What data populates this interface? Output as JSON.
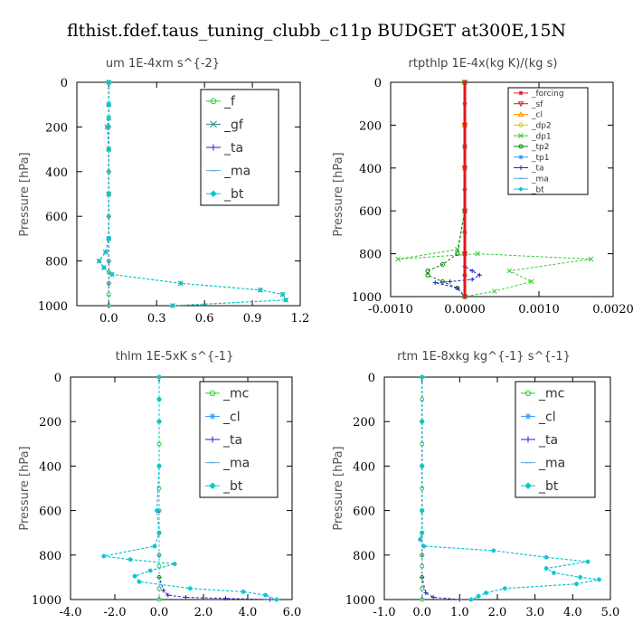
{
  "figure_title": "flthist.fdef.taus_tuning_clubb_c11p  BUDGET at300E,15N",
  "colors": {
    "forcing": "#e8141c",
    "green": "#33cc33",
    "blue": "#2222cc",
    "cyan": "#00cccc",
    "steel": "#2e8b8b",
    "orange": "#ff9900",
    "yellow": "#ddcc00",
    "darkgreen": "#008800",
    "sky": "#3399ff",
    "lightblue": "#66aadd"
  },
  "chart_data": [
    {
      "type": "line",
      "title": "um  1E-4xm s^{-2}",
      "ylabel": "Pressure [hPa]",
      "xlim": [
        -0.2,
        1.2
      ],
      "ylim": [
        1000,
        0
      ],
      "xticks": [
        0.0,
        0.3,
        0.6,
        0.9,
        1.2
      ],
      "xtick_labels": [
        "0.0",
        "0.3",
        "0.6",
        "0.9",
        "1.2"
      ],
      "yticks": [
        0,
        200,
        400,
        600,
        800,
        1000
      ],
      "ytick_labels": [
        "0",
        "200",
        "400",
        "600",
        "800",
        "1000"
      ],
      "legend": {
        "location": "top-right",
        "entries": [
          "_f",
          "_gf",
          "_ta",
          "_ma",
          "_bt"
        ]
      },
      "series": [
        {
          "name": "_f",
          "color": "#33cc33",
          "marker": "circle",
          "x": [
            0,
            0,
            0,
            0,
            0,
            0,
            0,
            0,
            0,
            0,
            0,
            0,
            0
          ],
          "y": [
            0,
            100,
            200,
            300,
            400,
            500,
            600,
            700,
            800,
            850,
            900,
            950,
            1000
          ]
        },
        {
          "name": "_gf",
          "color": "#2e8b8b",
          "marker": "x",
          "x": [
            0,
            0,
            0,
            -0.01,
            0,
            0,
            0,
            -0.02,
            -0.06,
            -0.03,
            0.02,
            0.45,
            0.95,
            1.09,
            1.11,
            0.4
          ],
          "y": [
            0,
            100,
            160,
            200,
            300,
            500,
            700,
            760,
            800,
            830,
            860,
            900,
            930,
            950,
            975,
            1000
          ]
        },
        {
          "name": "_ta",
          "color": "#2222cc",
          "marker": "plus",
          "x": [
            0,
            0,
            0,
            0,
            0,
            0,
            0,
            0,
            0,
            0,
            0
          ],
          "y": [
            0,
            100,
            200,
            300,
            400,
            500,
            600,
            700,
            800,
            900,
            1000
          ]
        },
        {
          "name": "_ma",
          "color": "#66aadd",
          "marker": "dash",
          "x": [
            0,
            0,
            0,
            0,
            0,
            0,
            0,
            0,
            0,
            0,
            0
          ],
          "y": [
            0,
            100,
            200,
            300,
            400,
            500,
            600,
            700,
            800,
            900,
            1000
          ]
        },
        {
          "name": "_bt",
          "color": "#00cccc",
          "marker": "diamond",
          "x": [
            0,
            0,
            0,
            -0.01,
            0,
            0,
            0,
            -0.02,
            -0.06,
            -0.03,
            0.02,
            0.45,
            0.95,
            1.09,
            1.11,
            0.4
          ],
          "y": [
            0,
            100,
            160,
            200,
            300,
            500,
            700,
            760,
            800,
            830,
            860,
            900,
            930,
            950,
            975,
            1000
          ]
        }
      ]
    },
    {
      "type": "line",
      "title": "rtpthlp  1E-4x(kg K)/(kg s)",
      "ylabel": "Pressure [hPa]",
      "xlim": [
        -0.001,
        0.002
      ],
      "ylim": [
        1000,
        0
      ],
      "xticks": [
        -0.001,
        0.0,
        0.001,
        0.002
      ],
      "xtick_labels": [
        "-0.0010",
        "0.0000",
        "0.0010",
        "0.0020"
      ],
      "yticks": [
        0,
        200,
        400,
        600,
        800,
        1000
      ],
      "ytick_labels": [
        "0",
        "200",
        "400",
        "600",
        "800",
        "1000"
      ],
      "legend": {
        "location": "top-right",
        "entries": [
          "_forcing",
          "_sf",
          "_cl",
          "_dp2",
          "_dp1",
          "_tp2",
          "_tp1",
          "_ta",
          "_ma",
          "_bt"
        ]
      },
      "series": [
        {
          "name": "_forcing",
          "color": "#e8141c",
          "marker": "star",
          "x": [
            0,
            0,
            0,
            0,
            0,
            0,
            0,
            0,
            0,
            0,
            0
          ],
          "y": [
            0,
            100,
            200,
            300,
            400,
            500,
            600,
            700,
            800,
            900,
            1000
          ]
        },
        {
          "name": "_sf",
          "color": "#cc2222",
          "marker": "triangle-down",
          "x": [
            0,
            0,
            0,
            0,
            0,
            0
          ],
          "y": [
            0,
            200,
            400,
            600,
            800,
            1000
          ]
        },
        {
          "name": "_cl",
          "color": "#ff9900",
          "marker": "triangle",
          "x": [
            0,
            0,
            0,
            0,
            0,
            0
          ],
          "y": [
            0,
            200,
            400,
            600,
            800,
            1000
          ]
        },
        {
          "name": "_dp2",
          "color": "#ddcc00",
          "marker": "circle",
          "x": [
            0,
            0,
            0,
            0,
            0,
            0
          ],
          "y": [
            0,
            200,
            400,
            600,
            800,
            1000
          ]
        },
        {
          "name": "_dp1",
          "color": "#33cc33",
          "marker": "x",
          "x": [
            0,
            0,
            0,
            -0.0001,
            -0.0009,
            0.00017,
            0.0017,
            0.0006,
            0.0009,
            0.0004,
            0
          ],
          "y": [
            0,
            300,
            600,
            780,
            825,
            800,
            825,
            880,
            930,
            975,
            1000
          ]
        },
        {
          "name": "_tp2",
          "color": "#008800",
          "marker": "circle",
          "x": [
            0,
            0,
            -0.0001,
            -0.0003,
            -0.0005,
            -0.0005,
            -0.0003,
            -0.0001,
            0
          ],
          "y": [
            0,
            600,
            800,
            850,
            880,
            900,
            930,
            960,
            1000
          ]
        },
        {
          "name": "_tp1",
          "color": "#3399ff",
          "marker": "star",
          "x": [
            0,
            0,
            0,
            0,
            0
          ],
          "y": [
            0,
            400,
            800,
            900,
            1000
          ]
        },
        {
          "name": "_ta",
          "color": "#2222cc",
          "marker": "plus",
          "x": [
            0,
            0,
            0,
            0,
            0.0001,
            0.0002,
            0.0001,
            -0.0002,
            -0.0004,
            -0.0001,
            0
          ],
          "y": [
            0,
            700,
            800,
            860,
            880,
            900,
            920,
            930,
            935,
            960,
            1000
          ]
        },
        {
          "name": "_ma",
          "color": "#66aadd",
          "marker": "dash",
          "x": [
            0,
            0,
            0,
            0,
            0
          ],
          "y": [
            0,
            300,
            600,
            900,
            1000
          ]
        },
        {
          "name": "_bt",
          "color": "#00cccc",
          "marker": "diamond",
          "x": [
            0,
            0,
            0,
            0,
            0
          ],
          "y": [
            0,
            300,
            600,
            900,
            1000
          ]
        }
      ]
    },
    {
      "type": "line",
      "title": "thlm  1E-5xK s^{-1}",
      "ylabel": "Pressure [hPa]",
      "xlim": [
        -4.0,
        6.0
      ],
      "ylim": [
        1000,
        0
      ],
      "xticks": [
        -4.0,
        -2.0,
        0.0,
        2.0,
        4.0,
        6.0
      ],
      "xtick_labels": [
        "-4.0",
        "-2.0",
        "0.0",
        "2.0",
        "4.0",
        "6.0"
      ],
      "yticks": [
        0,
        200,
        400,
        600,
        800,
        1000
      ],
      "ytick_labels": [
        "0",
        "200",
        "400",
        "600",
        "800",
        "1000"
      ],
      "legend": {
        "location": "top-right",
        "entries": [
          "_mc",
          "_cl",
          "_ta",
          "_ma",
          "_bt"
        ]
      },
      "series": [
        {
          "name": "_mc",
          "color": "#33cc33",
          "marker": "circle",
          "x": [
            0,
            0,
            0,
            0,
            0,
            0,
            0,
            0,
            0,
            0,
            0,
            0,
            0
          ],
          "y": [
            0,
            100,
            200,
            300,
            400,
            500,
            600,
            700,
            800,
            850,
            900,
            950,
            1000
          ]
        },
        {
          "name": "_cl",
          "color": "#3399ff",
          "marker": "star",
          "x": [
            0,
            0,
            0,
            0,
            -0.1,
            0,
            -0.2,
            -2.5,
            -1.3,
            0.7,
            -0.4,
            -1.1,
            -0.9,
            1.4,
            3.8,
            4.8,
            5.3
          ],
          "y": [
            0,
            100,
            200,
            400,
            600,
            700,
            760,
            805,
            820,
            840,
            870,
            895,
            920,
            950,
            965,
            980,
            1000
          ]
        },
        {
          "name": "_ta",
          "color": "#2222cc",
          "marker": "plus",
          "x": [
            0,
            0,
            0,
            0,
            0,
            0,
            0.2,
            0.4,
            1.2,
            3.0,
            5.0
          ],
          "y": [
            0,
            200,
            400,
            600,
            800,
            900,
            960,
            980,
            990,
            995,
            1000
          ]
        },
        {
          "name": "_ma",
          "color": "#66aadd",
          "marker": "dash",
          "x": [
            0,
            0,
            0,
            0,
            0,
            0
          ],
          "y": [
            0,
            200,
            400,
            600,
            800,
            1000
          ]
        },
        {
          "name": "_bt",
          "color": "#00cccc",
          "marker": "diamond",
          "x": [
            0,
            0,
            0,
            0,
            -0.1,
            0,
            -0.2,
            -2.5,
            -1.3,
            0.7,
            -0.4,
            -1.1,
            -0.9,
            1.4,
            3.8,
            4.8,
            5.3
          ],
          "y": [
            0,
            100,
            200,
            400,
            600,
            700,
            760,
            805,
            820,
            840,
            870,
            895,
            920,
            950,
            965,
            980,
            1000
          ]
        }
      ]
    },
    {
      "type": "line",
      "title": "rtm  1E-8xkg kg^{-1} s^{-1}",
      "ylabel": "Pressure [hPa]",
      "xlim": [
        -1.0,
        5.0
      ],
      "ylim": [
        1000,
        0
      ],
      "xticks": [
        -1.0,
        0.0,
        1.0,
        2.0,
        3.0,
        4.0,
        5.0
      ],
      "xtick_labels": [
        "-1.0",
        "0.0",
        "1.0",
        "2.0",
        "3.0",
        "4.0",
        "5.0"
      ],
      "yticks": [
        0,
        200,
        400,
        600,
        800,
        1000
      ],
      "ytick_labels": [
        "0",
        "200",
        "400",
        "600",
        "800",
        "1000"
      ],
      "legend": {
        "location": "top-right",
        "entries": [
          "_mc",
          "_cl",
          "_ta",
          "_ma",
          "_bt"
        ]
      },
      "series": [
        {
          "name": "_mc",
          "color": "#33cc33",
          "marker": "circle",
          "x": [
            0,
            0,
            0,
            0,
            0,
            0,
            0,
            0,
            0,
            0,
            0,
            0,
            0
          ],
          "y": [
            0,
            100,
            200,
            300,
            400,
            500,
            600,
            700,
            800,
            850,
            900,
            950,
            1000
          ]
        },
        {
          "name": "_cl",
          "color": "#3399ff",
          "marker": "star",
          "x": [
            0,
            0,
            0,
            0,
            0,
            -0.05,
            0.05,
            1.9,
            3.3,
            4.4,
            3.3,
            3.5,
            4.2,
            4.7,
            4.1,
            2.2,
            1.7,
            1.5,
            1.3
          ],
          "y": [
            0,
            200,
            400,
            600,
            700,
            730,
            760,
            780,
            810,
            830,
            860,
            880,
            900,
            910,
            930,
            950,
            970,
            985,
            1000
          ]
        },
        {
          "name": "_ta",
          "color": "#2222cc",
          "marker": "plus",
          "x": [
            0,
            0,
            0,
            0,
            0,
            0,
            0.1,
            0.3,
            1.0
          ],
          "y": [
            0,
            200,
            400,
            600,
            800,
            900,
            970,
            990,
            1000
          ]
        },
        {
          "name": "_ma",
          "color": "#66aadd",
          "marker": "dash",
          "x": [
            0,
            0,
            0,
            0,
            0,
            0
          ],
          "y": [
            0,
            200,
            400,
            600,
            800,
            1000
          ]
        },
        {
          "name": "_bt",
          "color": "#00cccc",
          "marker": "diamond",
          "x": [
            0,
            0,
            0,
            0,
            0,
            -0.05,
            0.05,
            1.9,
            3.3,
            4.4,
            3.3,
            3.5,
            4.2,
            4.7,
            4.1,
            2.2,
            1.7,
            1.5,
            1.3
          ],
          "y": [
            0,
            200,
            400,
            600,
            700,
            730,
            760,
            780,
            810,
            830,
            860,
            880,
            900,
            910,
            930,
            950,
            970,
            985,
            1000
          ]
        }
      ]
    }
  ]
}
